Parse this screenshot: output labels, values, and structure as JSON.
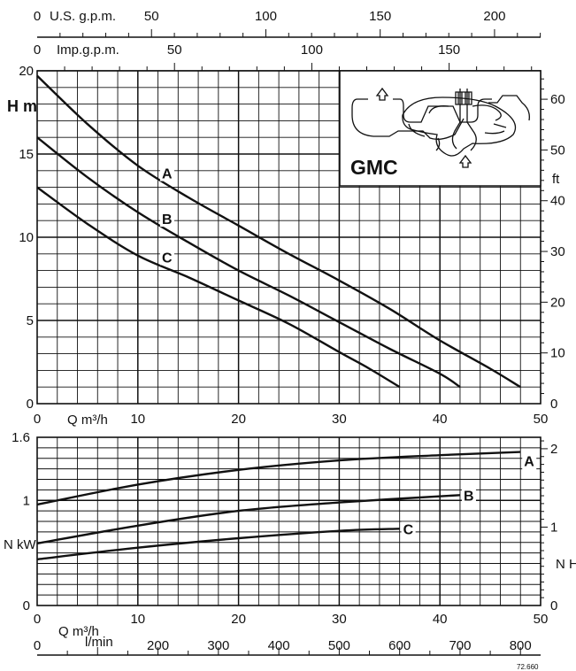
{
  "chart_data": [
    {
      "type": "line",
      "title": "",
      "xlabel": "Q m³/h",
      "ylabel": "H m",
      "ylabel_right": "ft",
      "xlim": [
        0,
        50
      ],
      "ylim": [
        0,
        20
      ],
      "ylim_right_ft": [
        0,
        65.6
      ],
      "x_ticks": [
        "0",
        "10",
        "20",
        "30",
        "40",
        "50"
      ],
      "y_ticks": [
        "0",
        "5",
        "10",
        "15",
        "20"
      ],
      "y_ticks_right": [
        "0",
        "10",
        "20",
        "30",
        "40",
        "50",
        "60"
      ],
      "top_axis_usgpm": {
        "label": "U.S. g.p.m.",
        "ticks": [
          "0",
          "50",
          "100",
          "150",
          "200"
        ]
      },
      "top_axis_impgpm": {
        "label": "Imp.g.p.m.",
        "ticks": [
          "0",
          "50",
          "100",
          "150"
        ]
      },
      "grid": true,
      "inset_label": "GMC",
      "series": [
        {
          "name": "A",
          "x": [
            0,
            5,
            10,
            15,
            20,
            25,
            30,
            35,
            40,
            45,
            48
          ],
          "y": [
            19.7,
            16.8,
            14.3,
            12.4,
            10.7,
            9.0,
            7.4,
            5.7,
            3.8,
            2.1,
            1.0
          ]
        },
        {
          "name": "B",
          "x": [
            0,
            5,
            10,
            15,
            20,
            25,
            30,
            35,
            40,
            42
          ],
          "y": [
            16.0,
            13.6,
            11.5,
            9.7,
            8.0,
            6.5,
            4.9,
            3.3,
            1.8,
            1.0
          ]
        },
        {
          "name": "C",
          "x": [
            0,
            5,
            10,
            15,
            20,
            25,
            30,
            33,
            36
          ],
          "y": [
            13.0,
            10.8,
            8.9,
            7.6,
            6.2,
            4.8,
            3.1,
            2.1,
            1.0
          ]
        }
      ]
    },
    {
      "type": "line",
      "title": "",
      "xlabel": "Q m³/h",
      "xlabel_lmin": "l/min",
      "ylabel": "N kW",
      "ylabel_right": "N HP",
      "xlim": [
        0,
        50
      ],
      "ylim": [
        0,
        1.6
      ],
      "x_ticks": [
        "0",
        "10",
        "20",
        "30",
        "40",
        "50"
      ],
      "y_ticks": [
        "0",
        "1",
        "1.6"
      ],
      "y_ticks_right": [
        "0",
        "1",
        "2"
      ],
      "bottom_axis_lmin": {
        "label": "l/min",
        "ticks": [
          "0",
          "200",
          "300",
          "400",
          "500",
          "600",
          "700",
          "800"
        ]
      },
      "grid": true,
      "code": "72.660",
      "series": [
        {
          "name": "A",
          "x": [
            0,
            10,
            20,
            30,
            40,
            48
          ],
          "y": [
            0.96,
            1.15,
            1.29,
            1.38,
            1.43,
            1.46
          ]
        },
        {
          "name": "B",
          "x": [
            0,
            10,
            20,
            30,
            42
          ],
          "y": [
            0.59,
            0.76,
            0.9,
            0.98,
            1.05
          ]
        },
        {
          "name": "C",
          "x": [
            0,
            10,
            20,
            30,
            36
          ],
          "y": [
            0.44,
            0.55,
            0.64,
            0.71,
            0.73
          ]
        }
      ]
    }
  ]
}
